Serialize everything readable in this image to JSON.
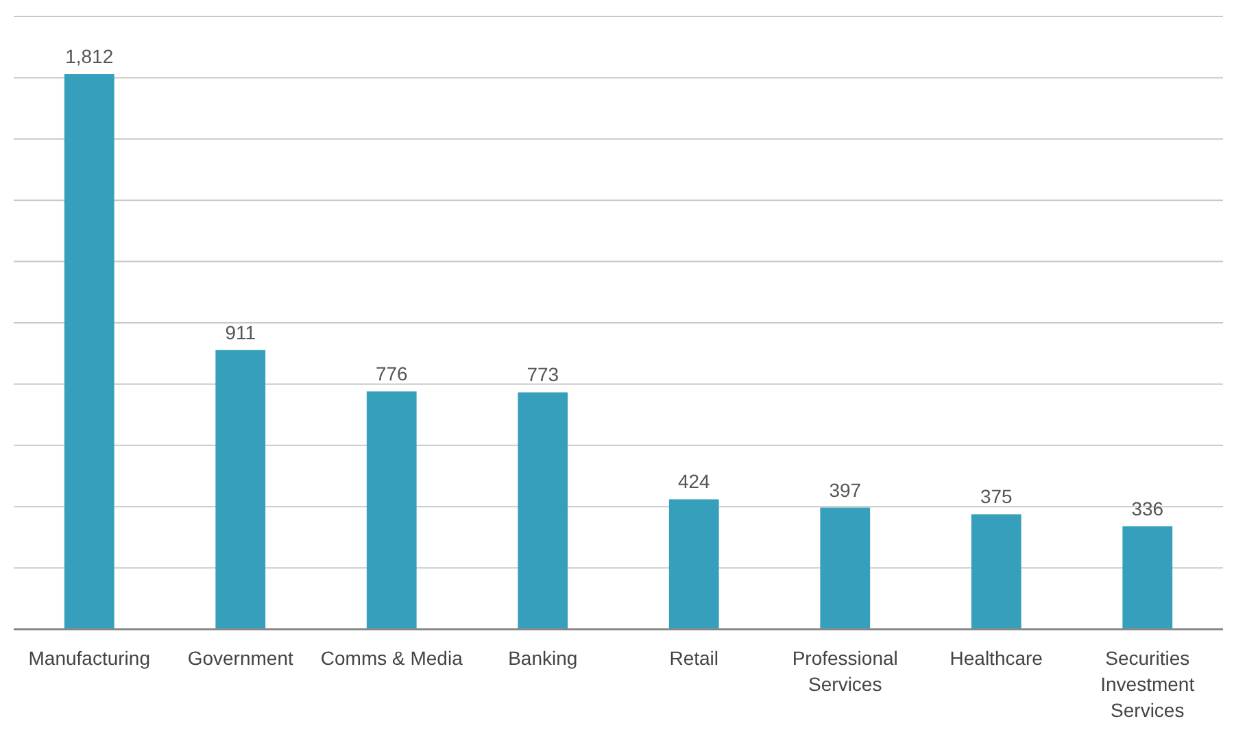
{
  "chart_data": {
    "type": "bar",
    "categories": [
      "Manufacturing",
      "Government",
      "Comms & Media",
      "Banking",
      "Retail",
      "Professional Services",
      "Healthcare",
      "Securities Investment Services"
    ],
    "values": [
      1812,
      911,
      776,
      773,
      424,
      397,
      375,
      336
    ],
    "value_labels": [
      "1,812",
      "911",
      "776",
      "773",
      "424",
      "397",
      "375",
      "336"
    ],
    "color": "#36a0bc",
    "grid": "y",
    "tick_labels": "x",
    "ylim": [
      0,
      2000
    ],
    "yticks": [
      {
        "value": 0,
        "label": null
      },
      {
        "value": 200,
        "label": null
      },
      {
        "value": 400,
        "label": null
      },
      {
        "value": 600,
        "label": null
      },
      {
        "value": 800,
        "label": null
      },
      {
        "value": 1000,
        "label": null
      },
      {
        "value": 1200,
        "label": null
      },
      {
        "value": 1400,
        "label": null
      },
      {
        "value": 1600,
        "label": null
      },
      {
        "value": 1800,
        "label": null
      },
      {
        "value": 2000,
        "label": null
      }
    ]
  }
}
